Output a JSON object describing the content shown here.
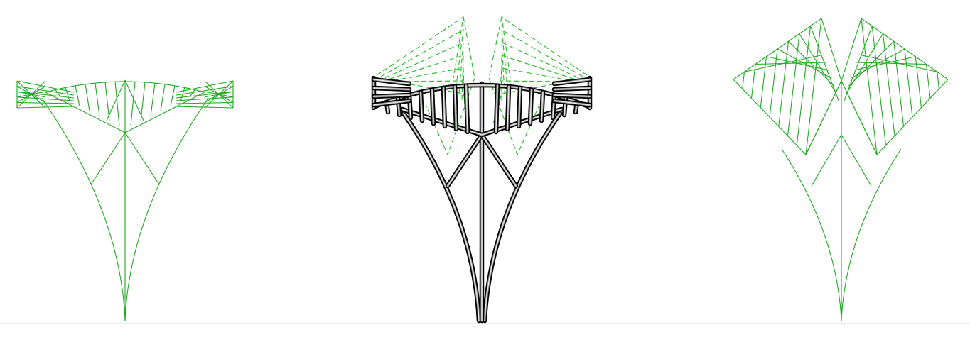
{
  "figure": {
    "panels": [
      {
        "id": "left",
        "type": "form-diagram-wireframe"
      },
      {
        "id": "middle",
        "type": "structural-model-with-force-lines"
      },
      {
        "id": "right",
        "type": "force-diagram-wireframe"
      }
    ],
    "colors": {
      "wire": "#22aa22",
      "dashed": "#22bb22",
      "member_outline": "#000000",
      "member_fill": "#9a9a9a",
      "ground_line": "#e6e6e6",
      "background": "#ffffff"
    }
  }
}
